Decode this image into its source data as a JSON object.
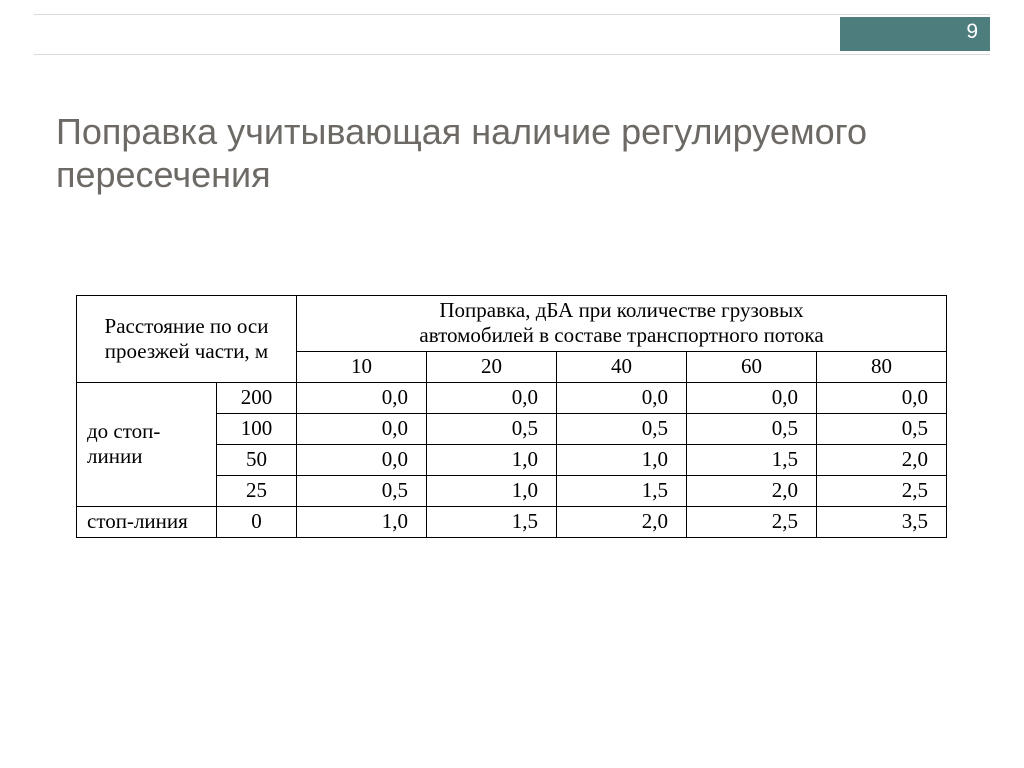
{
  "page_number": "9",
  "title": "Поправка учитывающая наличие регулируемого пересечения",
  "colors": {
    "teal_block": "#4e7d7d",
    "title_text": "#6d6a66",
    "rule": "#d9d9d9",
    "border": "#000000",
    "background": "#ffffff"
  },
  "fonts": {
    "title_family": "Arial",
    "title_size_pt": 27,
    "table_family": "Times New Roman",
    "table_size_pt": 16
  },
  "table": {
    "type": "table",
    "header_left_line1": "Расстояние по оси",
    "header_left_line2": "проезжей части, м",
    "header_right_line1": "Поправка, дБА при количестве грузовых",
    "header_right_line2": "автомобилей в составе транспортного потока",
    "truck_counts": [
      "10",
      "20",
      "40",
      "60",
      "80"
    ],
    "groups": [
      {
        "label": "до стоп-линии",
        "rows": [
          {
            "distance": "200",
            "values": [
              "0,0",
              "0,0",
              "0,0",
              "0,0",
              "0,0"
            ]
          },
          {
            "distance": "100",
            "values": [
              "0,0",
              "0,5",
              "0,5",
              "0,5",
              "0,5"
            ]
          },
          {
            "distance": "50",
            "values": [
              "0,0",
              "1,0",
              "1,0",
              "1,5",
              "2,0"
            ]
          },
          {
            "distance": "25",
            "values": [
              "0,5",
              "1,0",
              "1,5",
              "2,0",
              "2,5"
            ]
          }
        ]
      },
      {
        "label": "стоп-линия",
        "rows": [
          {
            "distance": "0",
            "values": [
              "1,0",
              "1,5",
              "2,0",
              "2,5",
              "3,5"
            ]
          }
        ]
      }
    ]
  }
}
